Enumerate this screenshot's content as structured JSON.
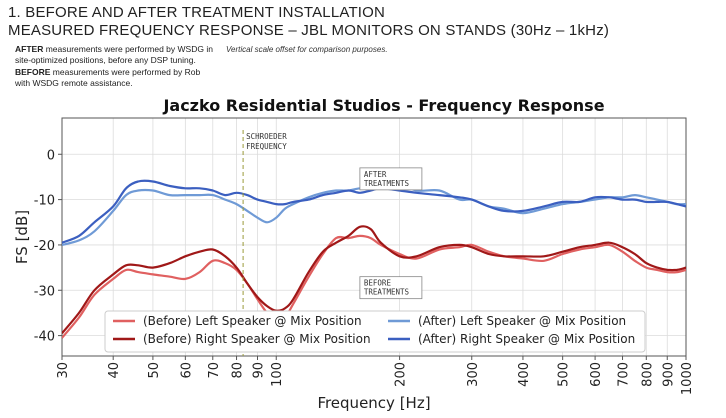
{
  "header": {
    "line1": "1. BEFORE AND AFTER TREATMENT INSTALLATION",
    "line2": "MEASURED FREQUENCY RESPONSE – JBL MONITORS ON STANDS (30Hz – 1kHz)"
  },
  "notes": {
    "after_bold": "AFTER",
    "after_text_1": " measurements were performed by WSDG in",
    "after_text_2": "site-optimized positions, before any DSP tuning.",
    "before_bold": "BEFORE",
    "before_text_1": " measurements were performed by Rob",
    "before_text_2": "with WSDG remote assistance.",
    "offset_note": "Vertical scale offset for comparison purposes."
  },
  "chart_data": {
    "type": "line",
    "title": "Jaczko Residential Studios - Frequency Response",
    "xlabel": "Frequency [Hz]",
    "ylabel": "FS [dB]",
    "x_scale": "log",
    "xlim": [
      30,
      1000
    ],
    "ylim": [
      -44.5,
      8
    ],
    "grid": true,
    "x_ticks": [
      30,
      40,
      50,
      60,
      70,
      80,
      90,
      100,
      200,
      300,
      400,
      500,
      600,
      700,
      800,
      900,
      1000
    ],
    "y_ticks": [
      0,
      -10,
      -20,
      -30,
      -40
    ],
    "legend_position": "bottom-center",
    "annotations": [
      {
        "text_lines": [
          "SCHROEDER",
          "FREQUENCY"
        ],
        "x": 83,
        "type": "vertical-line"
      },
      {
        "text_lines": [
          "AFTER",
          "TREATMENTS"
        ],
        "x": 160,
        "y": -3
      },
      {
        "text_lines": [
          "BEFORE",
          "TREATMENTS"
        ],
        "x": 160,
        "y": -27
      }
    ],
    "series": [
      {
        "name": "(Before) Left Speaker @ Mix Position",
        "color": "#e06060",
        "x": [
          30,
          33,
          36,
          40,
          43,
          46,
          50,
          55,
          60,
          65,
          70,
          75,
          80,
          85,
          90,
          95,
          100,
          105,
          110,
          120,
          130,
          140,
          150,
          160,
          170,
          180,
          200,
          220,
          250,
          280,
          300,
          330,
          360,
          400,
          450,
          500,
          550,
          600,
          650,
          700,
          750,
          800,
          850,
          900,
          950,
          1000
        ],
        "y": [
          -40.5,
          -36,
          -31,
          -27.5,
          -25.5,
          -26,
          -26.5,
          -27,
          -27.5,
          -26,
          -23.5,
          -24,
          -25.5,
          -28.5,
          -32,
          -35,
          -36.5,
          -36,
          -33,
          -27,
          -22,
          -18.5,
          -18.5,
          -18,
          -18.5,
          -20,
          -22,
          -23,
          -21,
          -20.5,
          -20,
          -21.5,
          -22.5,
          -23,
          -23.5,
          -22,
          -21,
          -20.5,
          -20,
          -21.5,
          -23.5,
          -25,
          -25.5,
          -26,
          -26,
          -25.5
        ]
      },
      {
        "name": "(Before) Right Speaker @ Mix Position",
        "color": "#a01818",
        "x": [
          30,
          33,
          36,
          40,
          43,
          46,
          50,
          55,
          60,
          65,
          70,
          75,
          80,
          85,
          90,
          95,
          100,
          105,
          110,
          120,
          130,
          140,
          150,
          160,
          170,
          180,
          200,
          220,
          250,
          280,
          300,
          330,
          360,
          400,
          450,
          500,
          550,
          600,
          650,
          700,
          750,
          800,
          850,
          900,
          950,
          1000
        ],
        "y": [
          -39.5,
          -35,
          -30,
          -26.5,
          -24.5,
          -24.5,
          -25,
          -24,
          -22.5,
          -21.5,
          -21,
          -22.5,
          -25,
          -28.5,
          -31.5,
          -33.5,
          -34.5,
          -34,
          -32,
          -26,
          -21.5,
          -19.5,
          -18,
          -16,
          -16.5,
          -19.5,
          -22.5,
          -22.5,
          -20.5,
          -20,
          -20.5,
          -22,
          -22.5,
          -22.5,
          -22.5,
          -21.5,
          -20.5,
          -20,
          -19.5,
          -20.5,
          -22,
          -24,
          -25,
          -25.5,
          -25.5,
          -25
        ]
      },
      {
        "name": "(After) Left Speaker @ Mix Position",
        "color": "#6f9ad6",
        "x": [
          30,
          33,
          36,
          40,
          43,
          46,
          50,
          55,
          60,
          65,
          70,
          75,
          80,
          85,
          90,
          95,
          100,
          105,
          110,
          120,
          130,
          140,
          150,
          160,
          170,
          180,
          200,
          220,
          250,
          280,
          300,
          330,
          360,
          400,
          450,
          500,
          550,
          600,
          650,
          700,
          750,
          800,
          850,
          900,
          950,
          1000
        ],
        "y": [
          -20,
          -19,
          -17,
          -12.5,
          -9,
          -8,
          -8,
          -9,
          -9,
          -9,
          -9,
          -10,
          -11,
          -12.5,
          -14,
          -15,
          -14,
          -12,
          -11,
          -9.5,
          -8.5,
          -8,
          -8,
          -7.5,
          -7.5,
          -7,
          -6.5,
          -8,
          -8,
          -10,
          -10,
          -11.5,
          -12,
          -13,
          -12,
          -11,
          -10.5,
          -10,
          -9.5,
          -9.5,
          -9,
          -9.5,
          -10,
          -10.5,
          -11,
          -11
        ]
      },
      {
        "name": "(After) Right Speaker @ Mix Position",
        "color": "#3b5fc0",
        "x": [
          30,
          33,
          36,
          40,
          43,
          46,
          50,
          55,
          60,
          65,
          70,
          75,
          80,
          85,
          90,
          95,
          100,
          105,
          110,
          120,
          130,
          140,
          150,
          160,
          170,
          180,
          200,
          220,
          250,
          280,
          300,
          330,
          360,
          400,
          450,
          500,
          550,
          600,
          650,
          700,
          750,
          800,
          850,
          900,
          950,
          1000
        ],
        "y": [
          -19.5,
          -18,
          -15,
          -11.5,
          -7.5,
          -6,
          -6,
          -7,
          -7.5,
          -7.5,
          -8,
          -9,
          -8.5,
          -9,
          -10,
          -10.5,
          -11,
          -11,
          -10.5,
          -10,
          -9,
          -8.5,
          -8,
          -8.5,
          -8,
          -7.5,
          -8,
          -8.5,
          -9,
          -9.5,
          -10,
          -11.5,
          -12.5,
          -12.5,
          -11.5,
          -10.5,
          -10.5,
          -9.5,
          -9.5,
          -10,
          -10,
          -10.5,
          -10.5,
          -10.5,
          -11,
          -11.5
        ]
      }
    ]
  }
}
